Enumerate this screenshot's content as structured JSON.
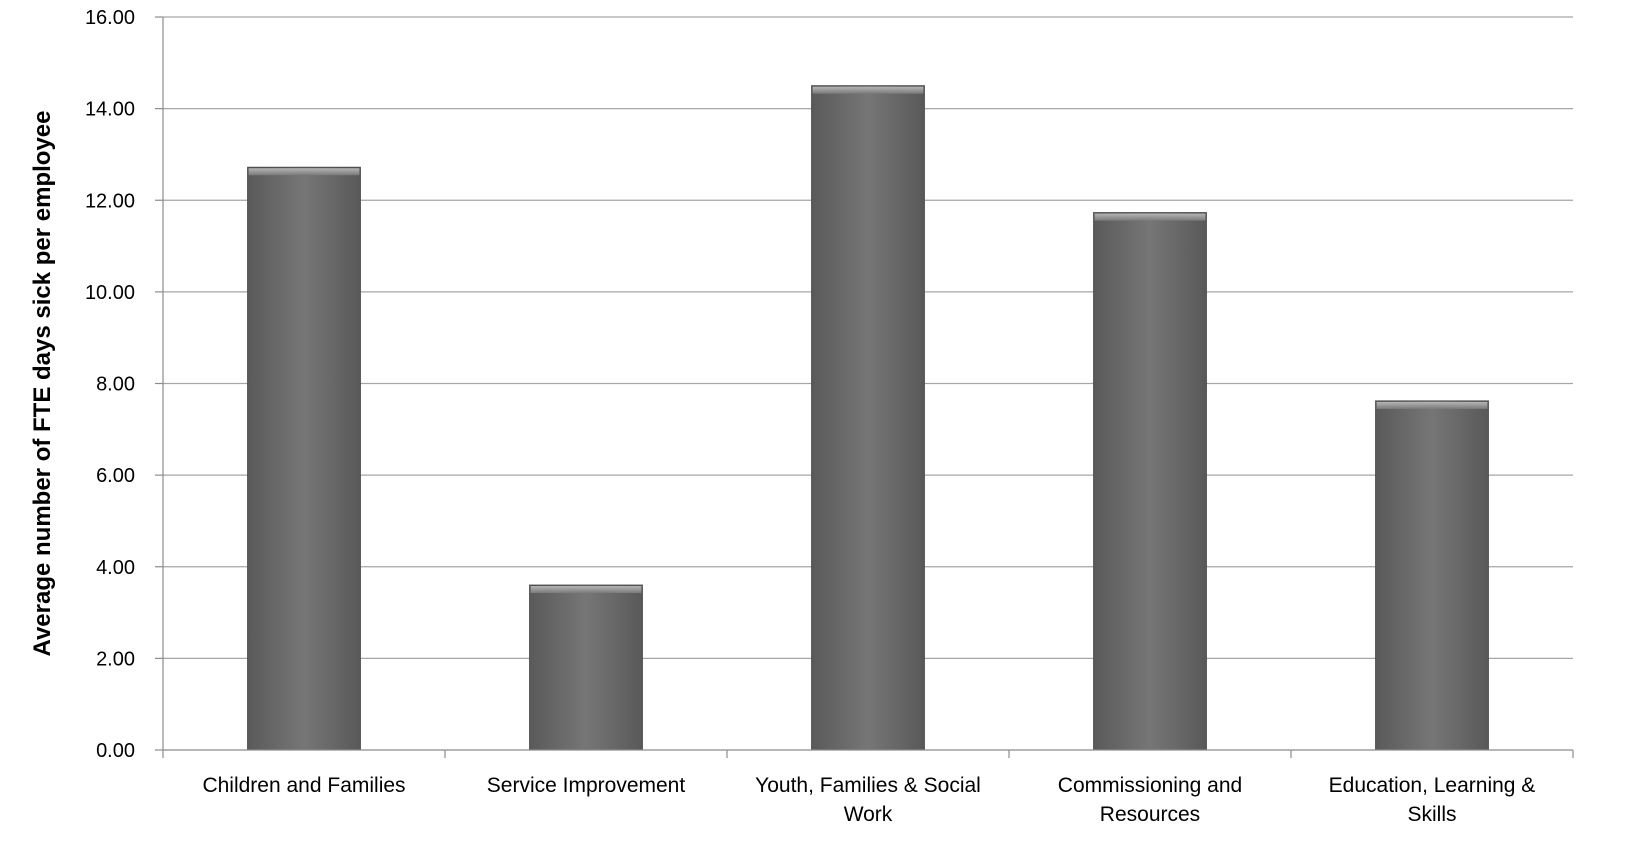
{
  "chart_data": {
    "type": "bar",
    "title": "",
    "xlabel": "",
    "ylabel": "Average number of FTE days sick per employee",
    "categories": [
      [
        "Children and Families"
      ],
      [
        "Service Improvement"
      ],
      [
        "Youth, Families & Social",
        "Work"
      ],
      [
        "Commissioning and",
        "Resources"
      ],
      [
        "Education, Learning &",
        "Skills"
      ]
    ],
    "values": [
      12.72,
      3.6,
      14.5,
      11.73,
      7.62
    ],
    "ylim": [
      0,
      16
    ],
    "yticks": [
      "0.00",
      "2.00",
      "4.00",
      "6.00",
      "8.00",
      "10.00",
      "12.00",
      "14.00",
      "16.00"
    ],
    "ytick_values": [
      0,
      2,
      4,
      6,
      8,
      10,
      12,
      14,
      16
    ],
    "grid": true,
    "legend": "none",
    "colors": {
      "bar": "#6f6f6f",
      "grid": "#a6a6a6",
      "axis": "#8c8c8c"
    }
  }
}
